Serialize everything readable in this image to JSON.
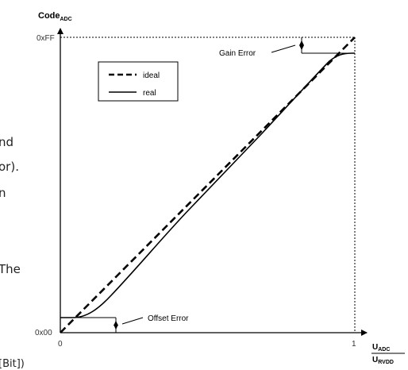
{
  "figure": {
    "y_axis_label": {
      "main": "Code",
      "sub": "ADC"
    },
    "x_axis_label": {
      "numerator": {
        "main": "U",
        "sub": "ADC"
      },
      "denominator": {
        "main": "U",
        "sub": "RVDD"
      }
    },
    "y_ticks": {
      "top": "0xFF",
      "bottom": "0x00"
    },
    "x_ticks": {
      "left": "0",
      "right": "1"
    },
    "legend": {
      "ideal": "ideal",
      "real": "real"
    },
    "annotations": {
      "gain": "Gain Error",
      "offset": "Offset Error"
    },
    "line_styles": {
      "ideal": "dashed",
      "real": "solid"
    },
    "colors": {
      "line": "#000000",
      "background": "#ffffff"
    }
  },
  "background_text": {
    "line1": "nd",
    "line2": "or).",
    "line3": "n",
    "line4": "The",
    "line5": "[Bit])"
  }
}
